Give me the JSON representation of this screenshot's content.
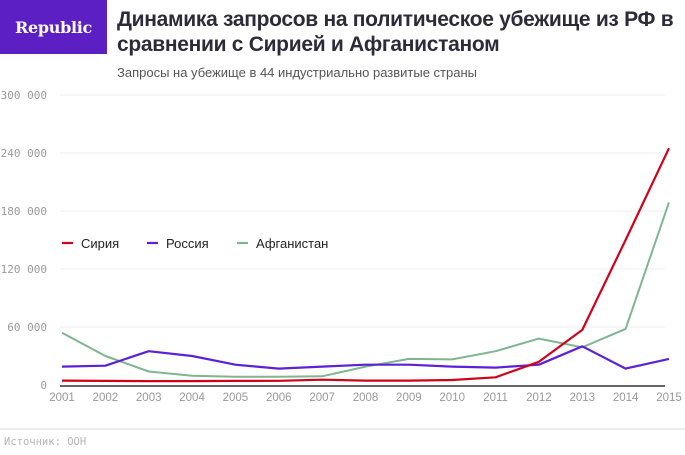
{
  "brand": {
    "logo_text": "Republic",
    "logo_color": "#5b1fc4"
  },
  "header": {
    "title": "Динамика запросов на политическое убежище из РФ в сравнении с Сирией и Афганистаном",
    "subtitle": "Запросы на убежище в 44 индустриально развитые страны"
  },
  "footer": {
    "source": "Источник: ООН"
  },
  "chart_data": {
    "type": "line",
    "title": "Динамика запросов на политическое убежище из РФ в сравнении с Сирией и Афганистаном",
    "subtitle": "Запросы на убежище в 44 индустриально развитые страны",
    "xlabel": "",
    "ylabel": "",
    "x": [
      2001,
      2002,
      2003,
      2004,
      2005,
      2006,
      2007,
      2008,
      2009,
      2010,
      2011,
      2012,
      2013,
      2014,
      2015
    ],
    "x_tick_labels": [
      "2001",
      "2002",
      "2003",
      "2004",
      "2005",
      "2006",
      "2007",
      "2008",
      "2009",
      "2010",
      "2011",
      "2012",
      "2013",
      "2014",
      "2015"
    ],
    "ylim": [
      0,
      300000
    ],
    "y_ticks": [
      0,
      60000,
      120000,
      180000,
      240000,
      300000
    ],
    "y_tick_labels": [
      "0",
      "60 000",
      "120 000",
      "180 000",
      "240 000",
      "300 000"
    ],
    "grid": true,
    "legend_position": "middle-left",
    "series": [
      {
        "name": "Сирия",
        "color": "#d0021b",
        "values": [
          4500,
          4200,
          4000,
          4000,
          4200,
          4300,
          5500,
          4500,
          4600,
          5200,
          8000,
          24000,
          57000,
          150000,
          245000
        ]
      },
      {
        "name": "Россия",
        "color": "#5b21d6",
        "values": [
          19000,
          20000,
          35000,
          30000,
          21000,
          17000,
          19000,
          21000,
          21000,
          19000,
          18000,
          21000,
          40000,
          17000,
          27000
        ]
      },
      {
        "name": "Афганистан",
        "color": "#7fb58f",
        "values": [
          54000,
          30000,
          14000,
          9500,
          8500,
          8500,
          9000,
          19000,
          27000,
          26500,
          35000,
          48000,
          39000,
          58000,
          189000
        ]
      }
    ]
  }
}
